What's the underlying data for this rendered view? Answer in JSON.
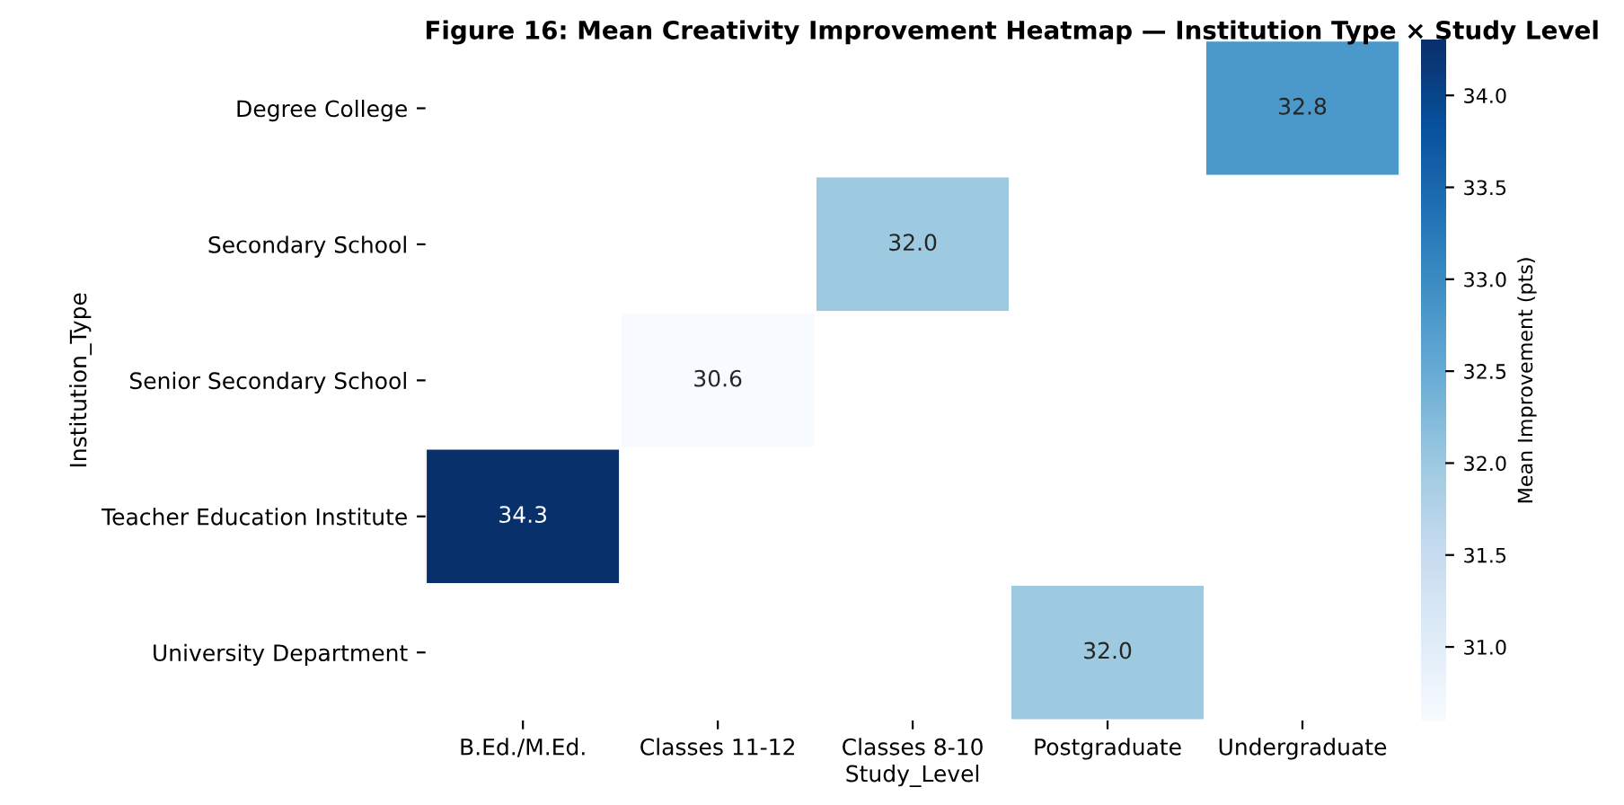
{
  "chart_data": {
    "type": "heatmap",
    "title": "Figure 16: Mean Creativity Improvement Heatmap — Institution Type × Study Level",
    "xlabel": "Study_Level",
    "ylabel": "Institution_Type",
    "clabel": "Mean Improvement (pts)",
    "categories": [
      "B.Ed./M.Ed.",
      "Classes 11-12",
      "Classes 8-10",
      "Postgraduate",
      "Undergraduate"
    ],
    "y_categories": [
      "Degree College",
      "Secondary School",
      "Senior Secondary School",
      "Teacher Education Institute",
      "University Department"
    ],
    "cells": [
      [
        null,
        null,
        null,
        null,
        32.8
      ],
      [
        null,
        null,
        32.0,
        null,
        null
      ],
      [
        null,
        30.6,
        null,
        null,
        null
      ],
      [
        34.3,
        null,
        null,
        null,
        null
      ],
      [
        null,
        null,
        null,
        32.0,
        null
      ]
    ],
    "cell_labels": [
      [
        null,
        null,
        null,
        null,
        "32.8"
      ],
      [
        null,
        null,
        "32.0",
        null,
        null
      ],
      [
        null,
        "30.6",
        null,
        null,
        null
      ],
      [
        "34.3",
        null,
        null,
        null,
        null
      ],
      [
        null,
        null,
        null,
        "32.0",
        null
      ]
    ],
    "clim": [
      30.6,
      34.3
    ],
    "cticks": [
      {
        "value": 31,
        "label": "31.0"
      },
      31.5,
      {
        "value": 32,
        "label": "32.0"
      },
      32.5,
      {
        "value": 33,
        "label": "33.0"
      },
      33.5,
      {
        "value": 34,
        "label": "34.0"
      }
    ]
  }
}
